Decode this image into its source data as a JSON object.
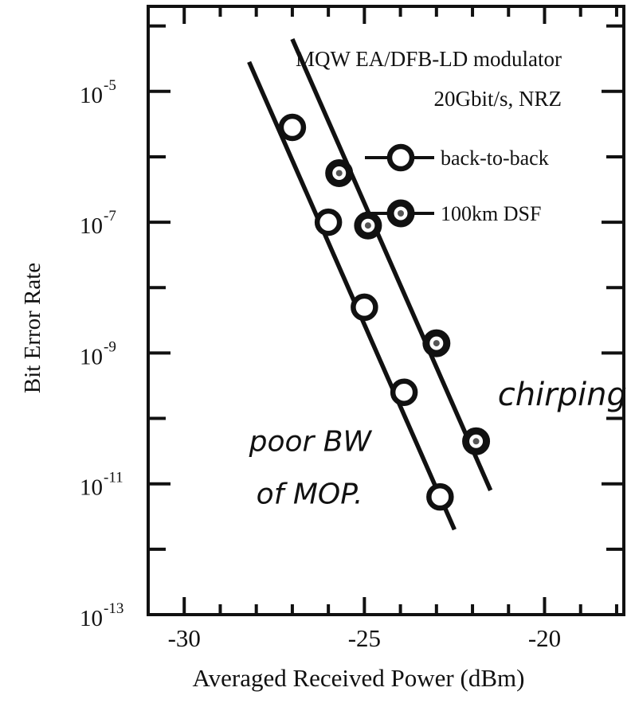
{
  "chart_data": {
    "type": "scatter",
    "title": "MQW EA/DFB-LD modulator",
    "subtitle": "20Gbit/s, NRZ",
    "xlabel": "Averaged Received Power (dBm)",
    "ylabel": "Bit  Error  Rate",
    "xlim": [
      -31,
      -17.8
    ],
    "ylim_log10": [
      -13,
      -3.7
    ],
    "y_scale": "log",
    "x_ticks": [
      {
        "value": -30,
        "label": "-30"
      },
      {
        "value": -25,
        "label": "-25"
      },
      {
        "value": -20,
        "label": "-20"
      }
    ],
    "y_ticks": [
      {
        "value": -5,
        "base": "10",
        "exp": "-5"
      },
      {
        "value": -7,
        "base": "10",
        "exp": "-7"
      },
      {
        "value": -9,
        "base": "10",
        "exp": "-9"
      },
      {
        "value": -11,
        "base": "10",
        "exp": "-11"
      },
      {
        "value": -13,
        "base": "10",
        "exp": "-13"
      }
    ],
    "legend_position": "top-right",
    "series": [
      {
        "name": "back-to-back",
        "marker": "open-circle",
        "x": [
          -27.0,
          -26.0,
          -25.0,
          -23.9,
          -22.9
        ],
        "y_log10": [
          -5.55,
          -7.0,
          -8.3,
          -9.6,
          -11.2
        ],
        "fit_x": [
          -28.2,
          -22.5
        ],
        "fit_y_log10": [
          -4.55,
          -11.7
        ]
      },
      {
        "name": "100km DSF",
        "marker": "filled-circle",
        "x": [
          -25.7,
          -24.9,
          -23.0,
          -21.9
        ],
        "y_log10": [
          -6.25,
          -7.05,
          -8.85,
          -10.35
        ],
        "fit_x": [
          -27.0,
          -21.5
        ],
        "fit_y_log10": [
          -4.2,
          -11.1
        ]
      }
    ],
    "annotations": [
      {
        "text": "poor BW",
        "x": -28.2,
        "y_log10": -10.5
      },
      {
        "text": "of MOP.",
        "x": -28.0,
        "y_log10": -11.3
      },
      {
        "text": "chirping",
        "x": -21.3,
        "y_log10": -9.8
      }
    ]
  }
}
